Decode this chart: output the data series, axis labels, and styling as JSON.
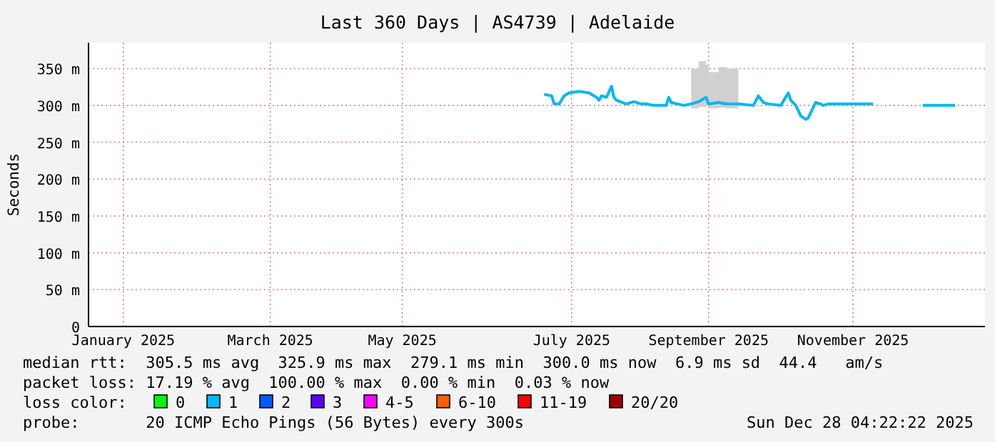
{
  "chart_data": {
    "type": "line",
    "title": "Last 360 Days | AS4739 | Adelaide",
    "ylabel": "Seconds",
    "xlim": [
      "2025-01-02",
      "2025-12-28"
    ],
    "xticks": [
      {
        "value": "2025-01-16",
        "label": "January 2025"
      },
      {
        "value": "2025-03-16",
        "label": "March 2025"
      },
      {
        "value": "2025-05-08",
        "label": "May 2025"
      },
      {
        "value": "2025-07-15",
        "label": "July 2025"
      },
      {
        "value": "2025-09-08",
        "label": "September 2025"
      },
      {
        "value": "2025-11-05",
        "label": "November 2025"
      }
    ],
    "ylim": [
      0,
      385
    ],
    "yticks": [
      {
        "value": 0,
        "label": "0"
      },
      {
        "value": 50,
        "label": "50 m"
      },
      {
        "value": 100,
        "label": "100 m"
      },
      {
        "value": 150,
        "label": "150 m"
      },
      {
        "value": 200,
        "label": "200 m"
      },
      {
        "value": 250,
        "label": "250 m"
      },
      {
        "value": 300,
        "label": "300 m"
      },
      {
        "value": 350,
        "label": "350 m"
      }
    ],
    "grid": true,
    "series": [
      {
        "type": "line",
        "color": "#00b8f0",
        "x": [
          "2025-07-04",
          "2025-07-07",
          "2025-07-08",
          "2025-07-10",
          "2025-07-12",
          "2025-07-14",
          "2025-07-18",
          "2025-07-22",
          "2025-07-25",
          "2025-07-26",
          "2025-07-27",
          "2025-07-29",
          "2025-07-31",
          "2025-08-01",
          "2025-08-02",
          "2025-08-06",
          "2025-08-09",
          "2025-08-12",
          "2025-08-14",
          "2025-08-17",
          "2025-08-22",
          "2025-08-23",
          "2025-08-24",
          "2025-08-29",
          "2025-09-01",
          "2025-09-04",
          "2025-09-07",
          "2025-09-08",
          "2025-09-12",
          "2025-09-15",
          "2025-09-20",
          "2025-09-26",
          "2025-09-28",
          "2025-09-30",
          "2025-10-02",
          "2025-10-07",
          "2025-10-10",
          "2025-10-11",
          "2025-10-13",
          "2025-10-15",
          "2025-10-17",
          "2025-10-18",
          "2025-10-21",
          "2025-10-23",
          "2025-10-24",
          "2025-10-26",
          "2025-10-30",
          "2025-11-04",
          "2025-11-09",
          "2025-11-13"
        ],
        "values": [
          315,
          313,
          302,
          302,
          313,
          317,
          319,
          317,
          311,
          307,
          313,
          311,
          326,
          311,
          307,
          302,
          305,
          302,
          302,
          300,
          300,
          311,
          304,
          300,
          302,
          305,
          311,
          302,
          304,
          302,
          302,
          300,
          313,
          304,
          302,
          300,
          317,
          307,
          300,
          286,
          281,
          283,
          304,
          302,
          300,
          302,
          302,
          302,
          302,
          302
        ],
        "lower": [
          null,
          null,
          null,
          null,
          null,
          null,
          null,
          null,
          null,
          null,
          null,
          null,
          null,
          null,
          null,
          null,
          null,
          null,
          null,
          null,
          null,
          null,
          null,
          null,
          296,
          298,
          300,
          296,
          297,
          296,
          296,
          null,
          null,
          null,
          null,
          null,
          null,
          null,
          null,
          null,
          null,
          null,
          null,
          null,
          null,
          null,
          null,
          null,
          null,
          null
        ],
        "upper": [
          null,
          null,
          null,
          null,
          null,
          null,
          null,
          null,
          null,
          null,
          null,
          null,
          null,
          null,
          null,
          null,
          null,
          null,
          null,
          null,
          null,
          null,
          null,
          null,
          350,
          360,
          355,
          345,
          352,
          350,
          345,
          null,
          null,
          null,
          null,
          null,
          null,
          null,
          null,
          null,
          null,
          null,
          null,
          null,
          null,
          null,
          null,
          null,
          null,
          null
        ]
      },
      {
        "type": "line",
        "color": "#00b8f0",
        "x": [
          "2025-12-03",
          "2025-12-08",
          "2025-12-12",
          "2025-12-16"
        ],
        "values": [
          300,
          300,
          300,
          300
        ]
      }
    ],
    "annotations": [
      "median rtt:  305.5 ms avg  325.9 ms max  279.1 ms min  300.0 ms now  6.9 ms sd  44.4   am/s",
      "packet loss: 17.19 % avg  100.00 % max  0.00 % min  0.03 % now",
      "loss color:",
      "0",
      "1",
      "2",
      "3",
      "4-5",
      "6-10",
      "11-19",
      "20/20",
      "probe:       20 ICMP Echo Pings (56 Bytes) every 300s",
      "Sun Dec 28 04:22:22 2025"
    ]
  }
}
